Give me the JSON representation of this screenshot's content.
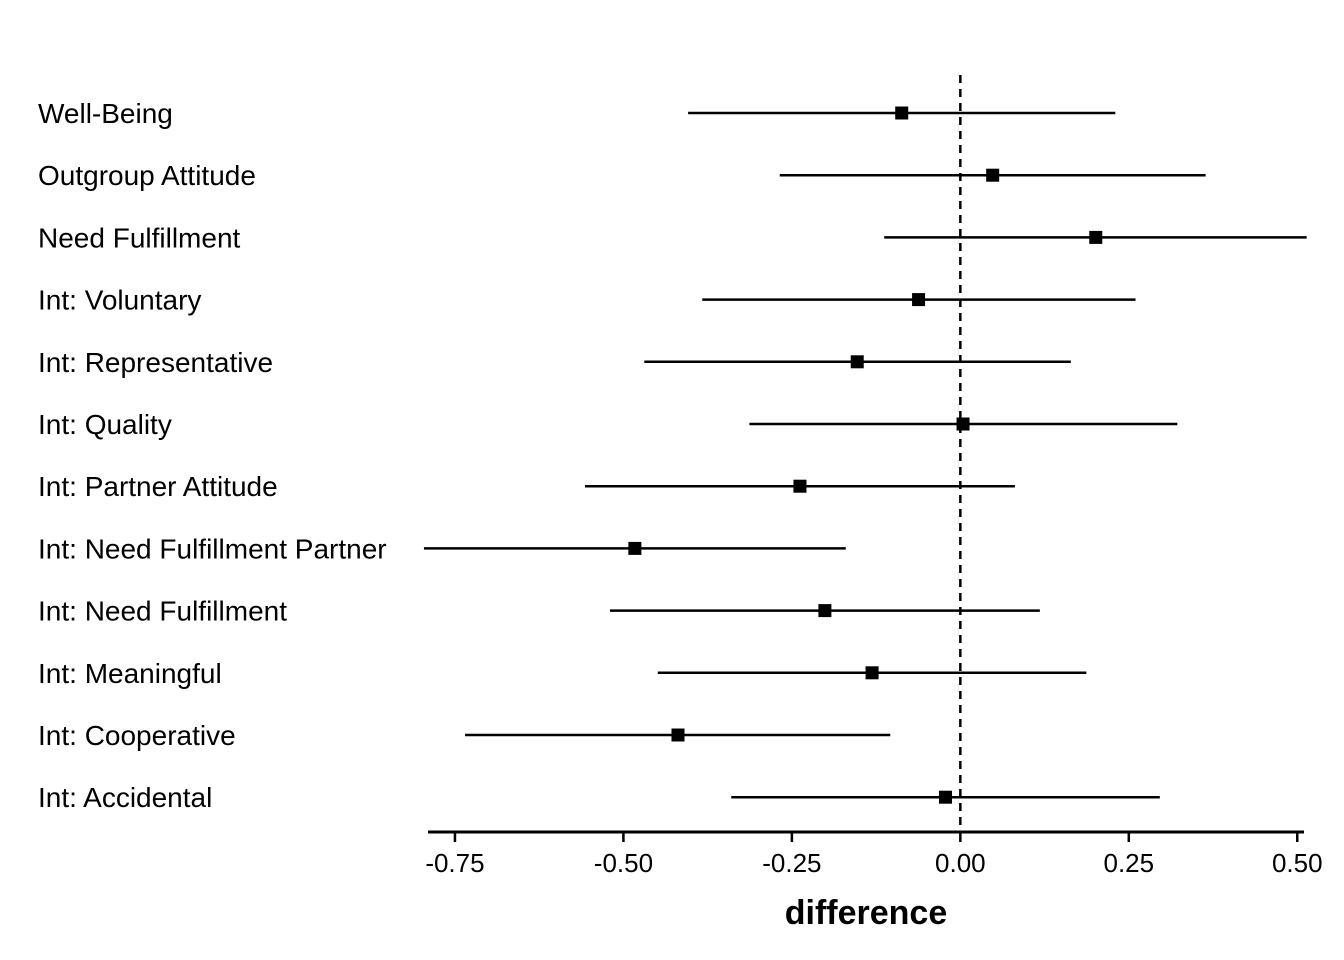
{
  "chart_data": {
    "type": "scatter",
    "subtype": "forest-plot",
    "title": "",
    "xlabel": "difference",
    "ylabel": "",
    "xlim": [
      -0.79,
      0.51
    ],
    "x_ticks": [
      -0.75,
      -0.5,
      -0.25,
      0.0,
      0.25,
      0.5
    ],
    "x_tick_labels": [
      "-0.75",
      "-0.50",
      "-0.25",
      "0.00",
      "0.25",
      "0.50"
    ],
    "reference_line": 0.0,
    "grid": false,
    "legend": "none",
    "colors": {
      "point": "#000000",
      "interval": "#000000",
      "reference": "#000000",
      "axis": "#000000"
    },
    "categories": [
      "Well-Being",
      "Outgroup Attitude",
      "Need Fulfillment",
      "Int: Voluntary",
      "Int: Representative",
      "Int: Quality",
      "Int: Partner Attitude",
      "Int: Need Fulfillment Partner",
      "Int: Need Fulfillment",
      "Int: Meaningful",
      "Int: Cooperative",
      "Int: Accidental"
    ],
    "estimates": [
      -0.087,
      0.048,
      0.201,
      -0.062,
      -0.153,
      0.004,
      -0.238,
      -0.483,
      -0.201,
      -0.131,
      -0.419,
      -0.022
    ],
    "lower": [
      -0.404,
      -0.268,
      -0.113,
      -0.383,
      -0.469,
      -0.313,
      -0.557,
      -0.796,
      -0.52,
      -0.449,
      -0.735,
      -0.34
    ],
    "upper": [
      0.23,
      0.364,
      0.514,
      0.26,
      0.164,
      0.322,
      0.081,
      -0.17,
      0.118,
      0.187,
      -0.104,
      0.296
    ]
  }
}
